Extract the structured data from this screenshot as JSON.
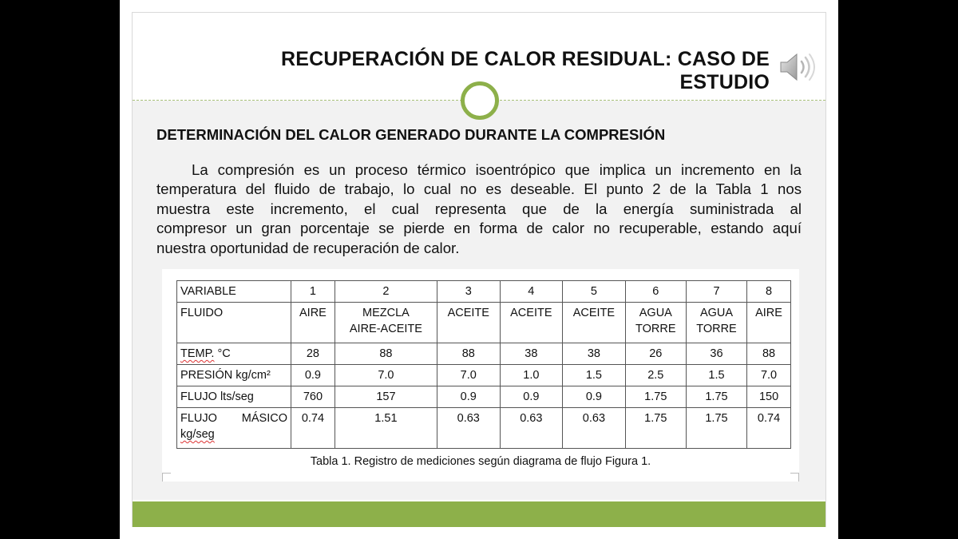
{
  "slide": {
    "title": "RECUPERACIÓN DE CALOR RESIDUAL: CASO DE ESTUDIO",
    "subtitle": "DETERMINACIÓN DEL CALOR GENERADO DURANTE LA COMPRESIÓN",
    "paragraph_lines": [
      "La compresión es un proceso térmico isoentrópico que implica un incremento en la",
      "temperatura del fluido de trabajo, lo cual no es deseable. El punto 2 de la Tabla 1 nos",
      "muestra este incremento, el cual representa que de la energía suministrada al",
      "compresor un gran porcentaje se pierde en forma de calor no recuperable, estando aquí",
      "nuestra oportunidad de recuperación de calor."
    ],
    "audio_icon": "speaker-icon",
    "accent_color": "#8db04a"
  },
  "table": {
    "header": [
      "VARIABLE",
      "1",
      "2",
      "3",
      "4",
      "5",
      "6",
      "7",
      "8"
    ],
    "fluido": {
      "label": "FLUIDO",
      "cells": [
        [
          "AIRE"
        ],
        [
          "MEZCLA",
          "AIRE-ACEITE"
        ],
        [
          "ACEITE"
        ],
        [
          "ACEITE"
        ],
        [
          "ACEITE"
        ],
        [
          "AGUA",
          "TORRE"
        ],
        [
          "AGUA",
          "TORRE"
        ],
        [
          "AIRE"
        ]
      ]
    },
    "temp": {
      "label_a": "TEMP.",
      "label_b": " °C",
      "values": [
        "28",
        "88",
        "88",
        "38",
        "38",
        "26",
        "36",
        "88"
      ]
    },
    "presion": {
      "label_a": "PRESIÓN ",
      "label_b": "kg/cm²",
      "values": [
        "0.9",
        "7.0",
        "7.0",
        "1.0",
        "1.5",
        "2.5",
        "1.5",
        "7.0"
      ]
    },
    "flujo": {
      "label_a": "FLUJO ",
      "label_b": "lts/seg",
      "values": [
        "760",
        "157",
        "0.9",
        "0.9",
        "0.9",
        "1.75",
        "1.75",
        "150"
      ]
    },
    "flujo_masico": {
      "label_a": "FLUJO",
      "label_b": "MÁSICO",
      "label_c": "kg/seg",
      "values": [
        "0.74",
        "1.51",
        "0.63",
        "0.63",
        "0.63",
        "1.75",
        "1.75",
        "0.74"
      ]
    },
    "caption": "Tabla 1. Registro de mediciones según diagrama de flujo Figura 1."
  }
}
